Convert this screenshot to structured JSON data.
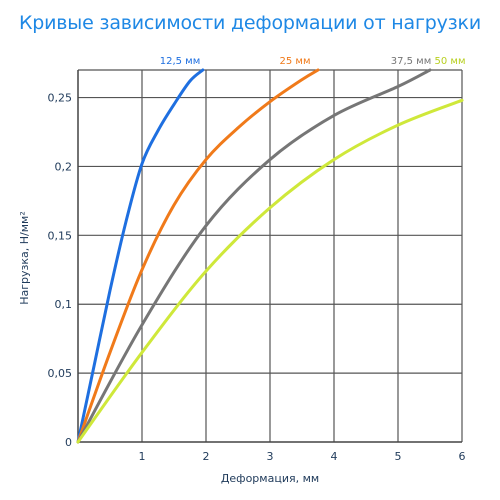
{
  "chart_data": {
    "type": "line",
    "title": "Кривые зависимости деформации от нагрузки",
    "xlabel": "Деформация, мм",
    "ylabel": "Нагрузка, Н/мм²",
    "xlim": [
      0,
      6
    ],
    "ylim": [
      0,
      0.27
    ],
    "x_ticks": [
      {
        "value": 1,
        "label": "1"
      },
      {
        "value": 2,
        "label": "2"
      },
      {
        "value": 3,
        "label": "3"
      },
      {
        "value": 4,
        "label": "4"
      },
      {
        "value": 5,
        "label": "5"
      },
      {
        "value": 6,
        "label": "6"
      }
    ],
    "y_ticks": [
      {
        "value": 0,
        "label": "0"
      },
      {
        "value": 0.05,
        "label": "0,05"
      },
      {
        "value": 0.1,
        "label": "0,1"
      },
      {
        "value": 0.15,
        "label": "0,15"
      },
      {
        "value": 0.2,
        "label": "0,2"
      },
      {
        "value": 0.25,
        "label": "0,25"
      }
    ],
    "grid": true,
    "series": [
      {
        "name": "12,5 мм",
        "color": "#1e6fe0",
        "x": [
          0,
          0.25,
          0.5,
          0.75,
          1.0,
          1.25,
          1.5,
          1.75,
          1.95
        ],
        "y": [
          0,
          0.055,
          0.11,
          0.16,
          0.202,
          0.226,
          0.245,
          0.262,
          0.27
        ]
      },
      {
        "name": "25 мм",
        "color": "#f07a1a",
        "x": [
          0,
          0.5,
          1.0,
          1.5,
          2.0,
          2.5,
          3.0,
          3.5,
          3.75
        ],
        "y": [
          0,
          0.065,
          0.125,
          0.172,
          0.205,
          0.228,
          0.247,
          0.263,
          0.27
        ]
      },
      {
        "name": "37,5 мм",
        "color": "#767676",
        "x": [
          0,
          1.0,
          2.0,
          3.0,
          4.0,
          5.0,
          5.5
        ],
        "y": [
          0,
          0.085,
          0.157,
          0.205,
          0.237,
          0.258,
          0.27
        ]
      },
      {
        "name": "50 мм",
        "color": "#cfe83a",
        "x": [
          0,
          1.0,
          2.0,
          3.0,
          4.0,
          5.0,
          6.0
        ],
        "y": [
          0,
          0.065,
          0.124,
          0.17,
          0.205,
          0.23,
          0.248
        ]
      }
    ]
  }
}
